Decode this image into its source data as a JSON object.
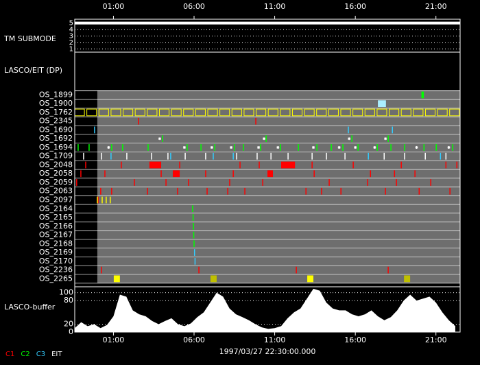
{
  "chart_data": {
    "type": "timeline",
    "xlim": [
      -1.4,
      22.5
    ],
    "xticks": [
      {
        "value": 1,
        "label": "01:00"
      },
      {
        "value": 6,
        "label": "06:00"
      },
      {
        "value": 11,
        "label": "11:00"
      },
      {
        "value": 16,
        "label": "16:00"
      },
      {
        "value": 21,
        "label": "21:00"
      }
    ],
    "date_label": "1997/03/27 22:30:00.000",
    "coverage": [
      0,
      22.5
    ],
    "tm_submode": {
      "label": "TM SUBMODE",
      "ylim": [
        0.5,
        5.6
      ],
      "yticks": [
        1,
        2,
        3,
        4,
        5
      ],
      "x": [
        -1.4,
        22.5
      ],
      "values": [
        5,
        5
      ],
      "color": "#ffffff"
    },
    "panel_label": "LASCO/EIT (DP)",
    "rows": [
      {
        "name": "OS_1899",
        "series": [
          {
            "color": "#00ff00",
            "starts": [
              20.1
            ],
            "ends": [
              20.25
            ]
          }
        ]
      },
      {
        "name": "OS_1900",
        "series": [
          {
            "color": "#aaeeff",
            "starts": [
              17.4
            ],
            "ends": [
              17.9
            ]
          }
        ]
      },
      {
        "name": "OS_1762",
        "series": [
          {
            "color": "#ffff00",
            "style": "outline",
            "starts": [
              -1.4,
              -0.65,
              0.1,
              0.85,
              1.6,
              2.35,
              3.1,
              3.85,
              4.6,
              5.35,
              6.1,
              6.85,
              7.6,
              8.35,
              9.1,
              9.85,
              10.6,
              11.35,
              12.1,
              12.85,
              13.6,
              14.35,
              15.1,
              15.85,
              16.6,
              17.35,
              18.1,
              18.85,
              19.6,
              20.35,
              21.1,
              21.85
            ],
            "ends": [
              -0.8,
              -0.05,
              0.7,
              1.45,
              2.2,
              2.95,
              3.7,
              4.45,
              5.2,
              5.95,
              6.7,
              7.45,
              8.2,
              8.95,
              9.7,
              10.45,
              11.2,
              11.95,
              12.7,
              13.45,
              14.2,
              14.95,
              15.7,
              16.45,
              17.2,
              17.95,
              18.7,
              19.45,
              20.2,
              20.95,
              21.7,
              22.45
            ]
          }
        ]
      },
      {
        "name": "OS_2345",
        "series": [
          {
            "color": "#ff0000",
            "times": [
              2.55,
              9.83
            ]
          }
        ]
      },
      {
        "name": "OS_1690",
        "series": [
          {
            "color": "#33ccff",
            "times": [
              -0.17,
              15.57,
              18.3
            ]
          }
        ]
      },
      {
        "name": "OS_1692",
        "series": [
          {
            "color": "#00ff00",
            "times": [
              4.04,
              10.47,
              15.79,
              18.04
            ]
          },
          {
            "color": "#ffffff",
            "marker": "star",
            "times": [
              3.87,
              10.34,
              15.62,
              17.87
            ]
          }
        ]
      },
      {
        "name": "OS_1694",
        "series": [
          {
            "color": "#00ff00",
            "times": [
              -1.19,
              -0.51,
              0.89,
              1.57,
              3.15,
              5.57,
              6.43,
              7.28,
              8.51,
              9.06,
              10.13,
              11.36,
              12.47,
              13.62,
              14.51,
              15.23,
              16.17,
              17.36,
              18.21,
              19.06,
              20.26,
              21.02,
              22.04
            ]
          },
          {
            "color": "#ffffff",
            "marker": "star",
            "times": [
              0.7,
              5.4,
              7.1,
              8.3,
              10.0,
              11.2,
              13.4,
              15.0,
              16.0,
              17.2,
              19.8,
              21.8
            ]
          }
        ]
      },
      {
        "name": "OS_1709",
        "series": [
          {
            "color": "#ffffff",
            "times": [
              -0.85,
              0.26,
              1.83,
              3.36,
              4.38,
              5.45,
              6.72,
              8.64,
              9.91,
              10.77,
              11.83,
              13.32,
              14.21,
              15.36,
              17.79,
              19.06,
              20.34,
              21.62
            ]
          },
          {
            "color": "#33ccff",
            "times": [
              0.85,
              4.55,
              7.19,
              8.43,
              16.81,
              21.28
            ]
          }
        ]
      },
      {
        "name": "OS_2048",
        "series": [
          {
            "color": "#ff0000",
            "times": [
              -0.72,
              1.49,
              5.11,
              8.85,
              10.04,
              13.32,
              15.87,
              18.85,
              21.62,
              22.3
            ]
          },
          {
            "color": "#ff0000",
            "starts": [
              3.23,
              11.4
            ],
            "ends": [
              3.96,
              12.26
            ]
          }
        ]
      },
      {
        "name": "OS_2058",
        "series": [
          {
            "color": "#ff0000",
            "times": [
              -1.02,
              0.47,
              3.96,
              6.72,
              8.43,
              13.45,
              16.94,
              18.43,
              19.7
            ]
          },
          {
            "color": "#ff0000",
            "starts": [
              4.68,
              10.55
            ],
            "ends": [
              5.11,
              10.89
            ]
          }
        ]
      },
      {
        "name": "OS_2059",
        "series": [
          {
            "color": "#ff0000",
            "times": [
              -1.28,
              2.3,
              4.26,
              5.66,
              8.21,
              10.26,
              14.38,
              16.77,
              18.55,
              20.68
            ]
          }
        ]
      },
      {
        "name": "OS_2063",
        "series": [
          {
            "color": "#ff0000",
            "times": [
              0.21,
              0.89,
              3.11,
              4.98,
              6.81,
              8.09,
              9.15,
              12.94,
              13.91,
              15.11,
              17.87,
              19.96,
              21.87
            ]
          }
        ]
      },
      {
        "name": "OS_2097",
        "series": [
          {
            "color": "#ff0000",
            "times": [
              0.05
            ]
          },
          {
            "color": "#ffff00",
            "times": [
              0,
              0.3,
              0.55,
              0.8
            ]
          }
        ]
      },
      {
        "name": "OS_2164",
        "series": [
          {
            "color": "#00ff00",
            "times": [
              5.91
            ]
          }
        ]
      },
      {
        "name": "OS_2165",
        "series": [
          {
            "color": "#00ff00",
            "times": [
              5.94
            ]
          }
        ]
      },
      {
        "name": "OS_2166",
        "series": [
          {
            "color": "#00ff00",
            "times": [
              5.96
            ]
          }
        ]
      },
      {
        "name": "OS_2167",
        "series": [
          {
            "color": "#00ff00",
            "times": [
              5.98
            ]
          }
        ]
      },
      {
        "name": "OS_2168",
        "series": [
          {
            "color": "#00ff00",
            "times": [
              6.0
            ]
          }
        ]
      },
      {
        "name": "OS_2169",
        "series": [
          {
            "color": "#33ccff",
            "times": [
              6.03
            ]
          }
        ]
      },
      {
        "name": "OS_2170",
        "series": [
          {
            "color": "#33ccff",
            "times": [
              6.06
            ]
          }
        ]
      },
      {
        "name": "OS_2236",
        "series": [
          {
            "color": "#ff0000",
            "times": [
              0.26,
              6.3,
              12.34,
              18.04
            ]
          }
        ]
      },
      {
        "name": "OS_2265",
        "series": [
          {
            "color": "#ffff00",
            "starts": [
              1.02,
              13.02
            ],
            "ends": [
              1.4,
              13.4
            ]
          },
          {
            "color": "#c0c000",
            "starts": [
              7.02,
              19.02
            ],
            "ends": [
              7.4,
              19.4
            ]
          }
        ]
      }
    ],
    "buffer": {
      "label": "LASCO-buffer",
      "ylim": [
        0,
        115
      ],
      "yticks": [
        0,
        20,
        80,
        100
      ],
      "color": "#ffffff",
      "x": [
        -1.4,
        -1.0,
        -0.6,
        -0.2,
        0.2,
        0.6,
        1.0,
        1.4,
        1.8,
        2.2,
        2.6,
        3.0,
        3.4,
        3.8,
        4.2,
        4.6,
        5.0,
        5.4,
        5.8,
        6.2,
        6.6,
        7.0,
        7.4,
        7.8,
        8.2,
        8.6,
        9.0,
        9.4,
        9.8,
        10.2,
        10.6,
        11.0,
        11.4,
        11.8,
        12.2,
        12.6,
        13.0,
        13.4,
        13.8,
        14.2,
        14.6,
        15.0,
        15.4,
        15.8,
        16.2,
        16.6,
        17.0,
        17.4,
        17.8,
        18.2,
        18.6,
        19.0,
        19.4,
        19.8,
        20.2,
        20.6,
        21.0,
        21.4,
        21.8,
        22.2
      ],
      "values": [
        10,
        25,
        15,
        20,
        10,
        18,
        40,
        95,
        90,
        55,
        45,
        40,
        28,
        20,
        28,
        35,
        20,
        15,
        22,
        38,
        50,
        75,
        100,
        90,
        60,
        45,
        38,
        30,
        20,
        12,
        8,
        10,
        15,
        35,
        50,
        60,
        85,
        110,
        105,
        75,
        60,
        55,
        55,
        45,
        40,
        45,
        55,
        40,
        30,
        38,
        55,
        80,
        95,
        80,
        85,
        90,
        75,
        50,
        30,
        15
      ]
    },
    "legend": [
      {
        "name": "C1",
        "color": "#ff0000"
      },
      {
        "name": "C2",
        "color": "#00ff00"
      },
      {
        "name": "C3",
        "color": "#33ccff"
      },
      {
        "name": "EIT",
        "color": "#ffffff"
      }
    ]
  }
}
